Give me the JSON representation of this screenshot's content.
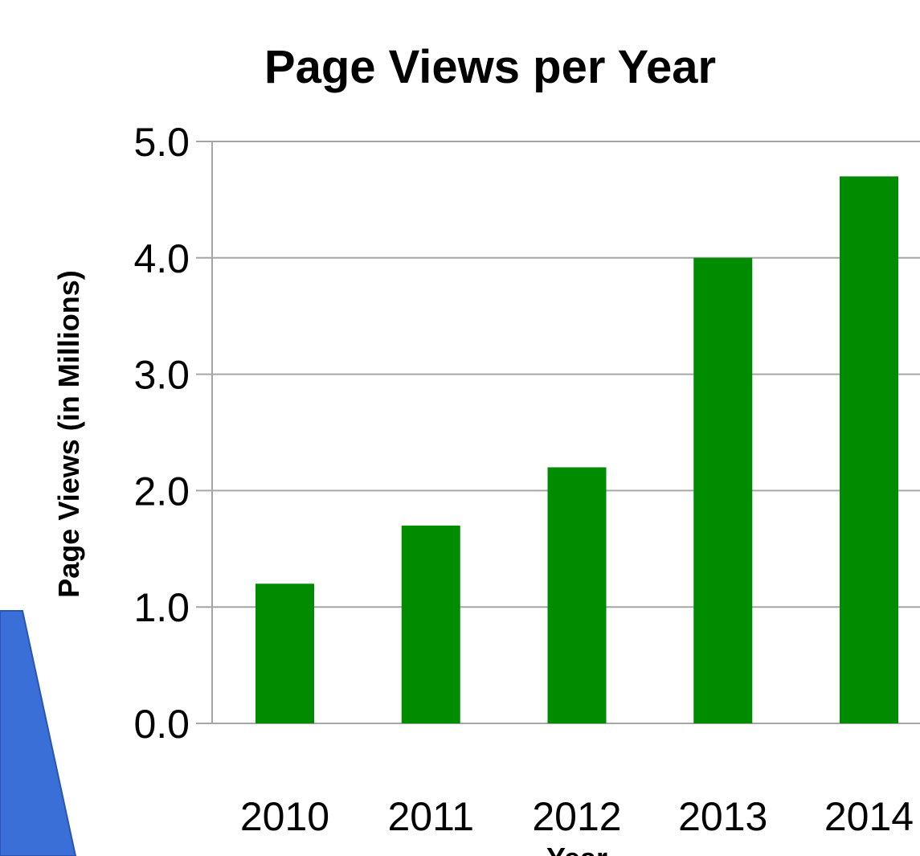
{
  "chart_data": {
    "type": "bar",
    "title": "Page Views per Year",
    "xlabel": "Year",
    "ylabel": "Page Views (in Millions)",
    "categories": [
      "2010",
      "2011",
      "2012",
      "2013",
      "2014"
    ],
    "values": [
      1.2,
      1.7,
      2.2,
      4.0,
      4.7
    ],
    "ylim": [
      0,
      5
    ],
    "y_ticks": [
      "0.0",
      "1.0",
      "2.0",
      "3.0",
      "4.0",
      "5.0"
    ],
    "y_tick_values": [
      0,
      1,
      2,
      3,
      4,
      5
    ],
    "grid": true,
    "legend": "none",
    "colors": {
      "bar": "#008c00",
      "gridline": "#a6a6a6",
      "decoration": "#3a6fd8"
    }
  }
}
